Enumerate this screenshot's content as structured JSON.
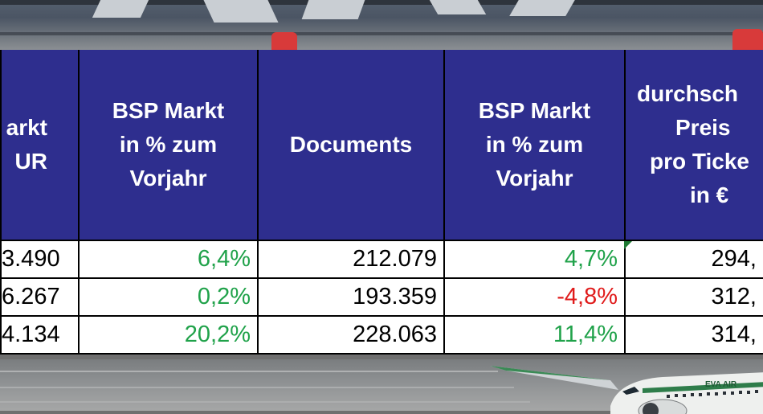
{
  "table": {
    "headers": [
      [
        "arkt",
        "UR"
      ],
      [
        "BSP Markt",
        "in % zum",
        "Vorjahr"
      ],
      [
        "Documents"
      ],
      [
        "BSP Markt",
        "in % zum",
        "Vorjahr"
      ],
      [
        "durchsch",
        "Preis",
        "pro Ticke",
        "in €"
      ]
    ],
    "rows": [
      {
        "c0": "3.490",
        "c1": "6,4%",
        "c1_sign": "pos",
        "c2": "212.079",
        "c3": "4,7%",
        "c3_sign": "pos",
        "c4": "294,"
      },
      {
        "c0": "6.267",
        "c1": "0,2%",
        "c1_sign": "pos",
        "c2": "193.359",
        "c3": "-4,8%",
        "c3_sign": "neg",
        "c4": "312,"
      },
      {
        "c0": "4.134",
        "c1": "20,2%",
        "c1_sign": "pos",
        "c2": "228.063",
        "c3": "11,4%",
        "c3_sign": "pos",
        "c4": "314,"
      }
    ]
  },
  "colors": {
    "header_bg": "#2e2e8e",
    "header_text": "#ffffff",
    "positive": "#20a24a",
    "negative": "#e01b1b"
  },
  "plane_livery": "EVA AIR"
}
